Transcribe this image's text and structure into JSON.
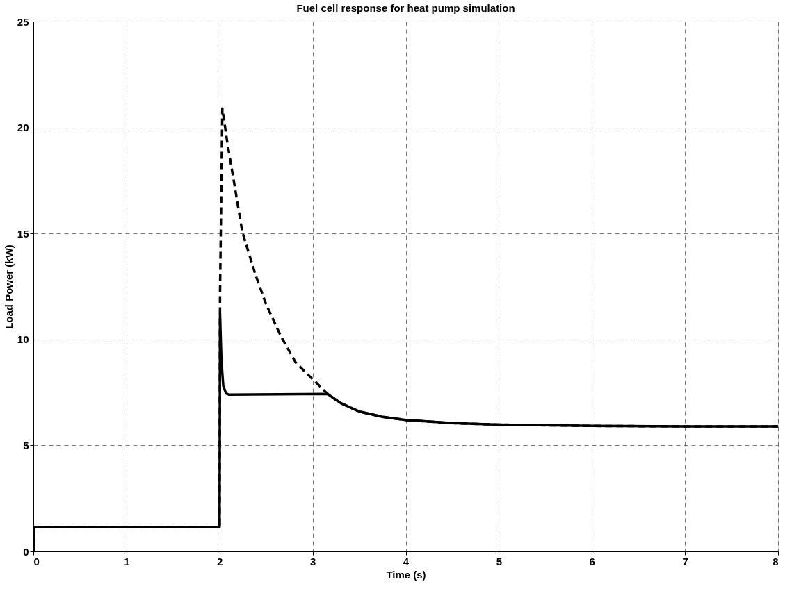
{
  "chart_data": {
    "type": "line",
    "title": "Fuel cell response for heat pump simulation",
    "xlabel": "Time (s)",
    "ylabel": "Load Power (kW)",
    "xlim": [
      0,
      8
    ],
    "xticks": [
      0,
      1,
      2,
      3,
      4,
      5,
      6,
      7,
      8
    ],
    "ylim": [
      0,
      25
    ],
    "yticks": [
      0,
      5,
      10,
      15,
      20,
      25
    ],
    "grid": true,
    "marker": "none",
    "series": [
      {
        "color": "#000000",
        "line_style": "dashed",
        "x": [
          0,
          0.01,
          2.0,
          2.005,
          2.03,
          2.085,
          2.165,
          2.244,
          2.387,
          2.499,
          2.658,
          2.817,
          3.071,
          3.16,
          3.3,
          3.5,
          3.75,
          4,
          4.5,
          5,
          6,
          7,
          8
        ],
        "values": [
          0,
          1.15,
          1.15,
          12.2,
          20.9,
          19.24,
          17.17,
          15.08,
          13.04,
          11.67,
          10.16,
          8.92,
          7.82,
          7.43,
          7.0,
          6.6,
          6.35,
          6.2,
          6.05,
          5.98,
          5.92,
          5.9,
          5.9
        ]
      },
      {
        "color": "#000000",
        "line_style": "solid",
        "x": [
          0,
          0.01,
          2.0,
          2.005,
          2.02,
          2.04,
          2.07,
          2.1,
          3.16,
          3.3,
          3.5,
          3.75,
          4,
          4.5,
          5,
          6,
          7,
          8
        ],
        "values": [
          0,
          1.15,
          1.15,
          11.2,
          9,
          7.8,
          7.45,
          7.4,
          7.43,
          7.0,
          6.6,
          6.35,
          6.2,
          6.05,
          5.98,
          5.92,
          5.9,
          5.9
        ]
      }
    ]
  }
}
